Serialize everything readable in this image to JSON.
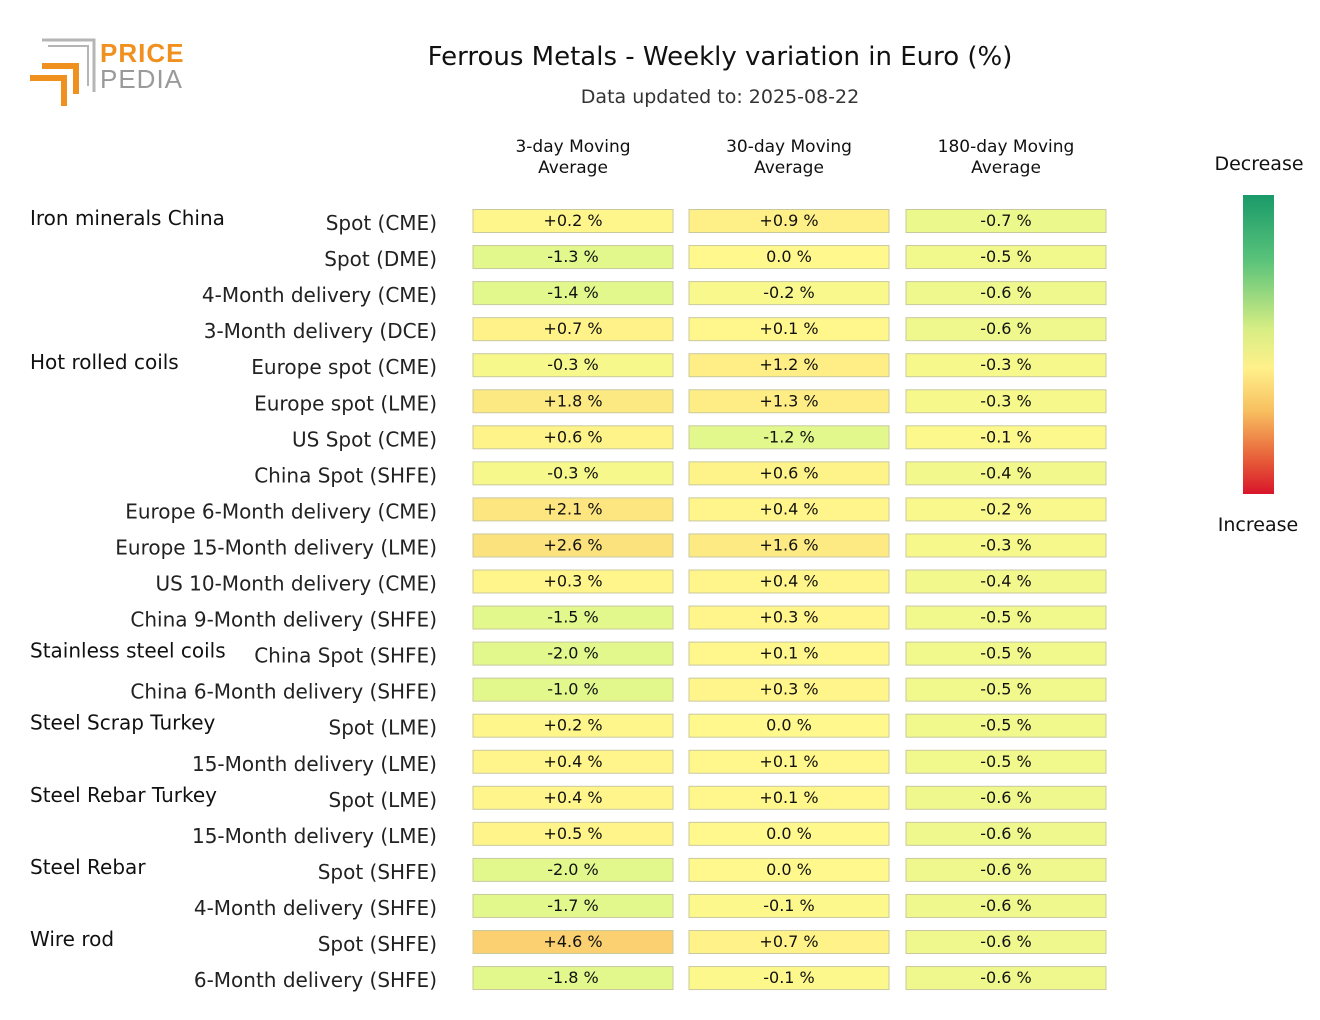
{
  "logo": {
    "line1": "PRICE",
    "line2": "PEDIA",
    "colors": {
      "orange": "#f0901e",
      "gray": "#9a9a9a"
    }
  },
  "chart_data": {
    "type": "heatmap",
    "title": "Ferrous Metals - Weekly variation in Euro (%)",
    "subtitle": "Data updated to: 2025-08-22",
    "columns": [
      "3-day Moving Average",
      "30-day Moving Average",
      "180-day Moving Average"
    ],
    "unit": "%",
    "color_scale": {
      "top_label": "Decrease",
      "bottom_label": "Increase",
      "top_color": "#1a9a6a",
      "mid_color": "#fff08a",
      "bottom_color": "#d8152a"
    },
    "groups": [
      "Iron minerals China",
      "Hot rolled coils",
      "Stainless steel coils",
      "Steel Scrap Turkey",
      "Steel Rebar Turkey",
      "Steel Rebar",
      "Wire rod"
    ],
    "rows": [
      {
        "group": "Iron minerals China",
        "label": "Spot (CME)",
        "values": [
          "+0.2",
          "+0.9",
          "-0.7"
        ]
      },
      {
        "group": "",
        "label": "Spot (DME)",
        "values": [
          "-1.3",
          "0.0",
          "-0.5"
        ]
      },
      {
        "group": "",
        "label": "4-Month delivery (CME)",
        "values": [
          "-1.4",
          "-0.2",
          "-0.6"
        ]
      },
      {
        "group": "",
        "label": "3-Month delivery (DCE)",
        "values": [
          "+0.7",
          "+0.1",
          "-0.6"
        ]
      },
      {
        "group": "Hot rolled coils",
        "label": "Europe spot (CME)",
        "values": [
          "-0.3",
          "+1.2",
          "-0.3"
        ]
      },
      {
        "group": "",
        "label": "Europe spot (LME)",
        "values": [
          "+1.8",
          "+1.3",
          "-0.3"
        ]
      },
      {
        "group": "",
        "label": "US Spot (CME)",
        "values": [
          "+0.6",
          "-1.2",
          "-0.1"
        ]
      },
      {
        "group": "",
        "label": "China Spot (SHFE)",
        "values": [
          "-0.3",
          "+0.6",
          "-0.4"
        ]
      },
      {
        "group": "",
        "label": "Europe 6-Month delivery (CME)",
        "values": [
          "+2.1",
          "+0.4",
          "-0.2"
        ]
      },
      {
        "group": "",
        "label": "Europe 15-Month delivery (LME)",
        "values": [
          "+2.6",
          "+1.6",
          "-0.3"
        ]
      },
      {
        "group": "",
        "label": "US 10-Month delivery (CME)",
        "values": [
          "+0.3",
          "+0.4",
          "-0.4"
        ]
      },
      {
        "group": "",
        "label": "China 9-Month delivery (SHFE)",
        "values": [
          "-1.5",
          "+0.3",
          "-0.5"
        ]
      },
      {
        "group": "Stainless steel coils",
        "label": "China Spot (SHFE)",
        "values": [
          "-2.0",
          "+0.1",
          "-0.5"
        ]
      },
      {
        "group": "",
        "label": "China 6-Month delivery (SHFE)",
        "values": [
          "-1.0",
          "+0.3",
          "-0.5"
        ]
      },
      {
        "group": "Steel Scrap Turkey",
        "label": "Spot (LME)",
        "values": [
          "+0.2",
          "0.0",
          "-0.5"
        ]
      },
      {
        "group": "",
        "label": "15-Month delivery (LME)",
        "values": [
          "+0.4",
          "+0.1",
          "-0.5"
        ]
      },
      {
        "group": "Steel Rebar Turkey",
        "label": "Spot (LME)",
        "values": [
          "+0.4",
          "+0.1",
          "-0.6"
        ]
      },
      {
        "group": "",
        "label": "15-Month delivery (LME)",
        "values": [
          "+0.5",
          "0.0",
          "-0.6"
        ]
      },
      {
        "group": "Steel Rebar",
        "label": "Spot (SHFE)",
        "values": [
          "-2.0",
          "0.0",
          "-0.6"
        ]
      },
      {
        "group": "",
        "label": "4-Month delivery (SHFE)",
        "values": [
          "-1.7",
          "-0.1",
          "-0.6"
        ]
      },
      {
        "group": "Wire rod",
        "label": "Spot (SHFE)",
        "values": [
          "+4.6",
          "+0.7",
          "-0.6"
        ]
      },
      {
        "group": "",
        "label": "6-Month delivery (SHFE)",
        "values": [
          "-1.8",
          "-0.1",
          "-0.6"
        ]
      }
    ]
  }
}
